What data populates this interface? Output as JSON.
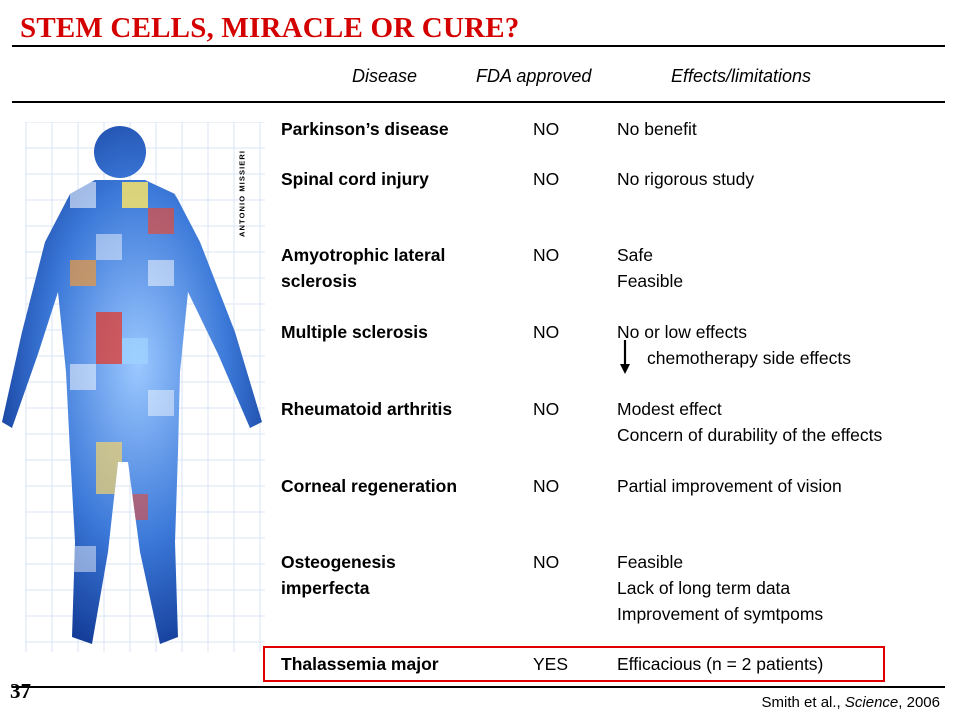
{
  "title": "STEM CELLS, MIRACLE OR CURE?",
  "headers": {
    "disease": "Disease",
    "fda": "FDA approved",
    "effects": "Effects/limitations"
  },
  "rows": [
    {
      "disease": [
        "Parkinson’s disease"
      ],
      "fda": "NO",
      "effects": [
        "No benefit"
      ]
    },
    {
      "disease": [
        "Spinal cord injury"
      ],
      "fda": "NO",
      "effects": [
        "No rigorous study"
      ]
    },
    {
      "disease": [
        "Amyotrophic lateral",
        "sclerosis"
      ],
      "fda": "NO",
      "effects": [
        "Safe",
        "Feasible"
      ]
    },
    {
      "disease": [
        "Multiple sclerosis"
      ],
      "fda": "NO",
      "effects": [
        "No or low effects",
        "chemotherapy side effects"
      ]
    },
    {
      "disease": [
        "Rheumatoid arthritis"
      ],
      "fda": "NO",
      "effects": [
        "Modest effect",
        "Concern of durability of the effects"
      ]
    },
    {
      "disease": [
        "Corneal regeneration"
      ],
      "fda": "NO",
      "effects": [
        "Partial improvement of vision"
      ]
    },
    {
      "disease": [
        "Osteogenesis",
        "imperfecta"
      ],
      "fda": "NO",
      "effects": [
        "Feasible",
        "Lack of long term data",
        "Improvement of symtpoms"
      ]
    },
    {
      "disease": [
        "Thalassemia major"
      ],
      "fda": "YES",
      "effects": [
        "Efficacious (n = 2 patients)"
      ]
    }
  ],
  "image_credit": "ANTONIO MISSIERI",
  "slide_number": "37",
  "citation": {
    "authors": "Smith et al., ",
    "journal": "Science",
    "year": ", 2006"
  },
  "icons": {
    "figure": "human-body-collage-image",
    "arrow": "down-arrow-icon"
  },
  "colors": {
    "title": "#d40000",
    "highlight": "#e00000"
  }
}
